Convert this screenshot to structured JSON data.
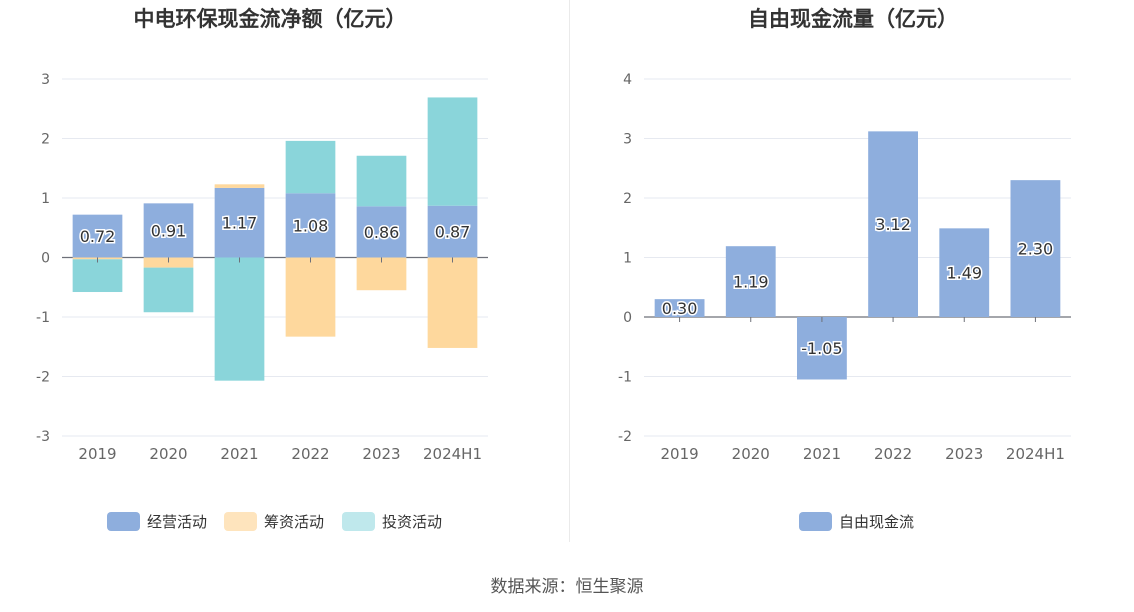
{
  "footer": {
    "source": "数据来源：恒生聚源"
  },
  "chart_data": [
    {
      "type": "bar",
      "stacked": true,
      "title": "中电环保现金流净额（亿元）",
      "categories": [
        "2019",
        "2020",
        "2021",
        "2022",
        "2023",
        "2024H1"
      ],
      "ylim": [
        -3,
        3
      ],
      "yticks": [
        "3",
        "2",
        "1",
        "0",
        "-1",
        "-2",
        "-3"
      ],
      "grid": true,
      "legend_position": "bottom",
      "series": [
        {
          "name": "经营活动",
          "color": "#8eaedd",
          "values": [
            0.72,
            0.91,
            1.17,
            1.08,
            0.86,
            0.87
          ],
          "labels": [
            "0.72",
            "0.91",
            "1.17",
            "1.08",
            "0.86",
            "0.87"
          ]
        },
        {
          "name": "筹资活动",
          "color": "#fed89d",
          "values": [
            -0.03,
            -0.17,
            0.06,
            -1.33,
            -0.55,
            -1.52
          ]
        },
        {
          "name": "投资活动",
          "color": "#8ad5da",
          "values": [
            -0.55,
            -0.75,
            -2.07,
            0.88,
            0.85,
            1.82
          ]
        }
      ]
    },
    {
      "type": "bar",
      "title": "自由现金流量（亿元）",
      "categories": [
        "2019",
        "2020",
        "2021",
        "2022",
        "2023",
        "2024H1"
      ],
      "ylim": [
        -2,
        4
      ],
      "yticks": [
        "4",
        "3",
        "2",
        "1",
        "0",
        "-1",
        "-2"
      ],
      "grid": true,
      "legend_position": "bottom",
      "series": [
        {
          "name": "自由现金流",
          "color": "#8eaedd",
          "values": [
            0.3,
            1.19,
            -1.05,
            3.12,
            1.49,
            2.3
          ],
          "labels": [
            "0.30",
            "1.19",
            "-1.05",
            "3.12",
            "1.49",
            "2.30"
          ]
        }
      ]
    }
  ],
  "legend_colors": {
    "经营活动": "#8eaedd",
    "筹资活动": "#fee4bd",
    "投资活动": "#bfe8ec",
    "自由现金流": "#8eaedd"
  }
}
